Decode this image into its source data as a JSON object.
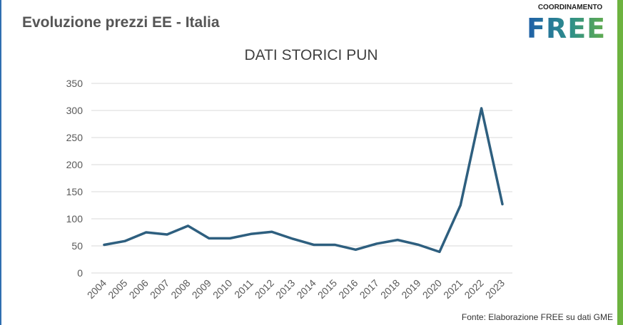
{
  "header": {
    "title": "Evoluzione prezzi EE - Italia"
  },
  "logo": {
    "top": "COORDINAMENTO",
    "main": "FREE"
  },
  "colors": {
    "line": "#2e5f7f",
    "grid": "#d9d9d9",
    "accent_green": "#6db33f",
    "accent_blue": "#2f6fb0"
  },
  "chart_data": {
    "type": "line",
    "title": "DATI STORICI PUN",
    "xlabel": "",
    "ylabel": "",
    "categories": [
      "2004",
      "2005",
      "2006",
      "2007",
      "2008",
      "2009",
      "2010",
      "2011",
      "2012",
      "2013",
      "2014",
      "2015",
      "2016",
      "2017",
      "2018",
      "2019",
      "2020",
      "2021",
      "2022",
      "2023"
    ],
    "series": [
      {
        "name": "PUN",
        "values": [
          52,
          59,
          75,
          71,
          87,
          64,
          64,
          72,
          76,
          63,
          52,
          52,
          43,
          54,
          61,
          52,
          39,
          125,
          304,
          127
        ]
      }
    ],
    "ylim": [
      0,
      350
    ],
    "yticks": [
      0,
      50,
      100,
      150,
      200,
      250,
      300,
      350
    ],
    "grid": true,
    "legend": "none"
  },
  "footer": {
    "source": "Fonte: Elaborazione FREE su dati GME"
  }
}
